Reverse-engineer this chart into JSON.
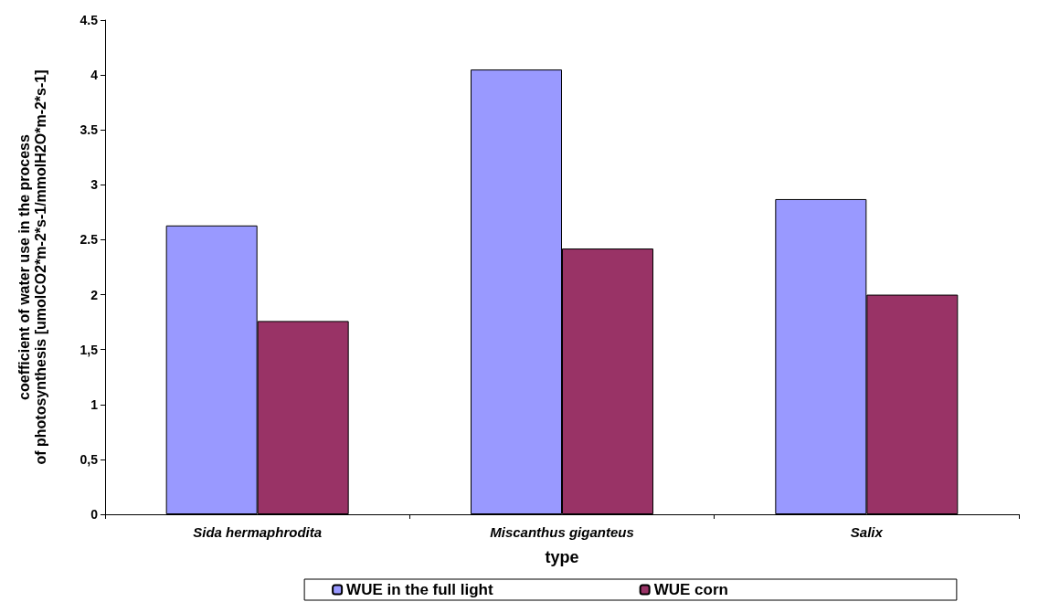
{
  "chart_data": {
    "type": "bar",
    "xlabel": "type",
    "ylabel": "coefficient of water use in the process\nof photosynthesis [umolCO2*m-2*s-1/mmolH2O*m-2*s-1]",
    "categories": [
      "Sida hermaphrodita",
      "Miscanthus giganteus",
      "Salix"
    ],
    "series": [
      {
        "name": "WUE in the full light",
        "color": "#9999ff",
        "values": [
          2.63,
          4.05,
          2.87
        ]
      },
      {
        "name": "WUE corn",
        "color": "#993366",
        "values": [
          1.76,
          2.42,
          2.0
        ]
      }
    ],
    "ylim": [
      0,
      4.5
    ],
    "yticks": [
      0,
      {
        "value": 0.5,
        "label": "0,5"
      },
      1,
      {
        "value": 1.5,
        "label": "1,5"
      },
      2,
      {
        "value": 2.5,
        "label": "2.5"
      },
      3,
      {
        "value": 3.5,
        "label": "3.5"
      },
      4,
      {
        "value": 4.5,
        "label": "4.5"
      }
    ],
    "grid": false,
    "legend": "bottom"
  }
}
